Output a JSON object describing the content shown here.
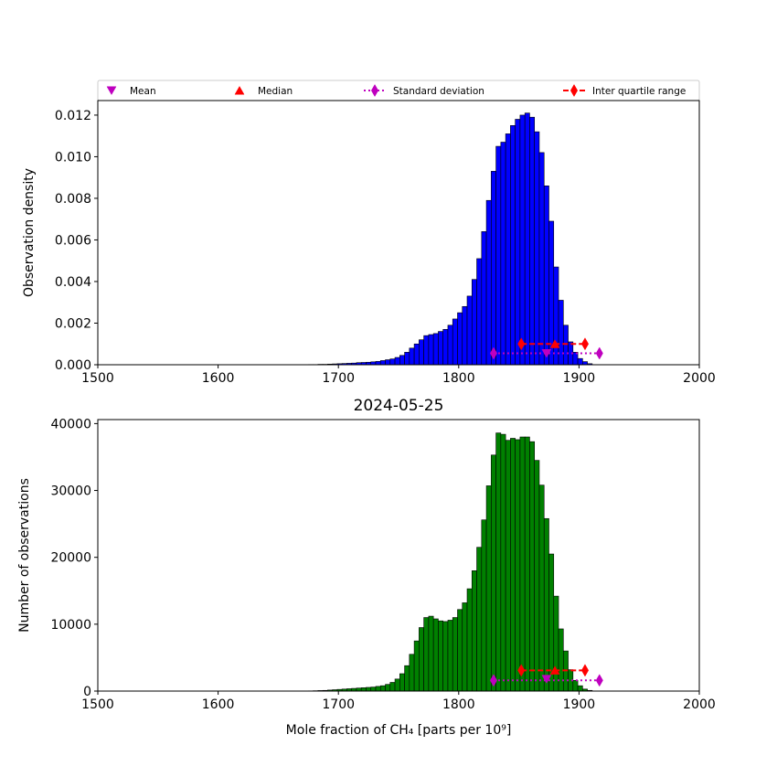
{
  "legend": {
    "entries": [
      {
        "label": "Mean",
        "color": "#bf00bf",
        "marker": "triangle-down",
        "line": "none"
      },
      {
        "label": "Median",
        "color": "#ff0000",
        "marker": "triangle-up",
        "line": "none"
      },
      {
        "label": "Standard deviation",
        "color": "#bf00bf",
        "marker": "diamond",
        "line": "dotted"
      },
      {
        "label": "Inter quartile range",
        "color": "#ff0000",
        "marker": "diamond",
        "line": "dashed"
      }
    ]
  },
  "chart_data": [
    {
      "type": "bar",
      "title": "",
      "xlabel": "",
      "ylabel": "Observation density",
      "xlim": [
        1500,
        2000
      ],
      "ylim": [
        0,
        0.0127
      ],
      "xticks": [
        1500,
        1600,
        1700,
        1800,
        1900,
        2000
      ],
      "xtick_labels": [
        "1500",
        "1600",
        "1700",
        "1800",
        "1900",
        "2000"
      ],
      "yticks": [
        0,
        0.002,
        0.004,
        0.006,
        0.008,
        0.01,
        0.012
      ],
      "ytick_labels": [
        "0.000",
        "0.002",
        "0.004",
        "0.006",
        "0.008",
        "0.010",
        "0.012"
      ],
      "bar_color": "#0000ff",
      "bin_start": 1675,
      "bin_width": 4,
      "values": [
        1e-05,
        1e-05,
        2e-05,
        2e-05,
        3e-05,
        4e-05,
        5e-05,
        6e-05,
        7e-05,
        8e-05,
        0.0001,
        0.00011,
        0.00012,
        0.00014,
        0.00016,
        0.0002,
        0.00024,
        0.00028,
        0.00035,
        0.00045,
        0.0006,
        0.0008,
        0.001,
        0.0012,
        0.0014,
        0.00145,
        0.0015,
        0.0016,
        0.0017,
        0.0019,
        0.0022,
        0.0025,
        0.0028,
        0.0033,
        0.0041,
        0.0051,
        0.0064,
        0.0079,
        0.0093,
        0.0105,
        0.0107,
        0.0111,
        0.0115,
        0.0118,
        0.012,
        0.0121,
        0.0119,
        0.0112,
        0.0102,
        0.0086,
        0.0069,
        0.0047,
        0.0031,
        0.0019,
        0.0011,
        0.0006,
        0.0003,
        0.00015,
        5e-05
      ],
      "markers": {
        "mean": {
          "x": 1873,
          "y": 0.00055
        },
        "median": {
          "x": 1880,
          "y": 0.001
        },
        "std": {
          "x": [
            1829,
            1917
          ],
          "y": 0.00055
        },
        "iqr": {
          "x": [
            1852,
            1905
          ],
          "y": 0.001
        }
      }
    },
    {
      "type": "bar",
      "title": "2024-05-25",
      "xlabel": "Mole fraction of CH₄ [parts per 10⁹]",
      "ylabel": "Number of observations",
      "xlim": [
        1500,
        2000
      ],
      "ylim": [
        0,
        40600
      ],
      "xticks": [
        1500,
        1600,
        1700,
        1800,
        1900,
        2000
      ],
      "xtick_labels": [
        "1500",
        "1600",
        "1700",
        "1800",
        "1900",
        "2000"
      ],
      "yticks": [
        0,
        10000,
        20000,
        30000,
        40000
      ],
      "ytick_labels": [
        "0",
        "10000",
        "20000",
        "30000",
        "40000"
      ],
      "bar_color": "#008000",
      "bin_start": 1675,
      "bin_width": 4,
      "values": [
        30,
        50,
        80,
        100,
        150,
        200,
        250,
        300,
        350,
        400,
        450,
        500,
        550,
        600,
        700,
        800,
        1000,
        1300,
        1800,
        2600,
        3800,
        5500,
        7500,
        9500,
        11000,
        11200,
        10800,
        10500,
        10400,
        10600,
        11000,
        12200,
        13200,
        15300,
        18000,
        21500,
        25600,
        30700,
        35300,
        38600,
        38400,
        37500,
        37800,
        37600,
        38000,
        38000,
        37300,
        34500,
        30800,
        25800,
        20500,
        14200,
        9300,
        6000,
        3200,
        1600,
        800,
        300,
        100
      ],
      "markers": {
        "mean": {
          "x": 1873,
          "y": 1800
        },
        "median": {
          "x": 1880,
          "y": 3100
        },
        "std": {
          "x": [
            1829,
            1917
          ],
          "y": 1600
        },
        "iqr": {
          "x": [
            1852,
            1905
          ],
          "y": 3100
        }
      }
    }
  ]
}
